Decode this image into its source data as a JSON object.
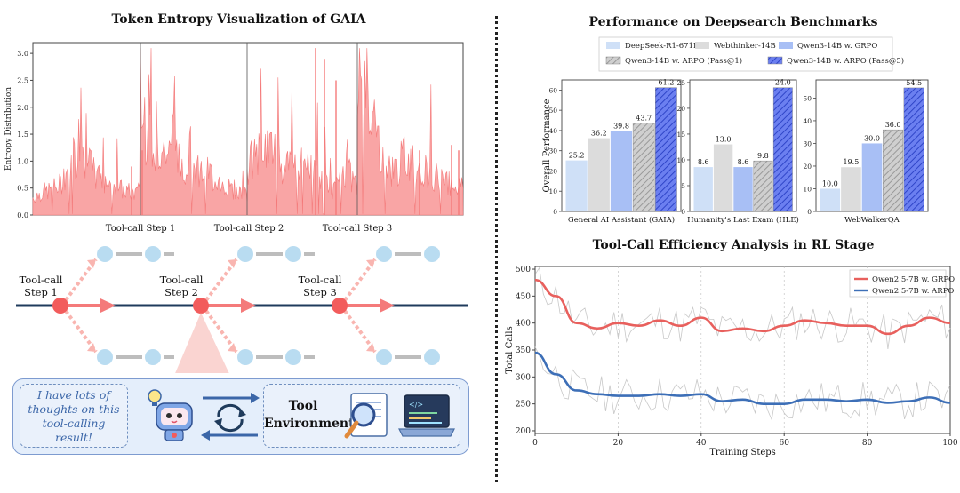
{
  "left": {
    "entropy_title": "Token Entropy Visualization of GAIA",
    "entropy_ylabel": "Entropy Distribution",
    "entropy_yticks": [
      "0.0",
      "0.5",
      "1.0",
      "1.5",
      "2.0",
      "2.5",
      "3.0"
    ],
    "step_labels": [
      "Tool-call Step 1",
      "Tool-call Step 2",
      "Tool-call Step 3"
    ],
    "node_labels": [
      {
        "line1": "Tool-call",
        "line2": "Step 1"
      },
      {
        "line1": "Tool-call",
        "line2": "Step 2"
      },
      {
        "line1": "Tool-call",
        "line2": "Step 3"
      }
    ],
    "thought_text": "I have lots of thoughts on this tool-calling result!",
    "thought_lines": [
      "I have lots of",
      "thoughts on this",
      "tool-calling result!"
    ],
    "env_lines": [
      "Tool",
      "Environment"
    ],
    "colors": {
      "entropy": "#f47a7a",
      "node": "#f25c5c",
      "branch": "#b9dcf1",
      "line": "#1f3b5c"
    }
  },
  "chart_data": [
    {
      "type": "area",
      "title": "Token Entropy Visualization of GAIA",
      "ylabel": "Entropy Distribution",
      "ylim": [
        0,
        3.2
      ],
      "yticks": [
        0.0,
        0.5,
        1.0,
        1.5,
        2.0,
        2.5,
        3.0
      ],
      "xtick_labels": [
        "Tool-call Step 1",
        "Tool-call Step 2",
        "Tool-call Step 3"
      ],
      "segments": [
        {
          "envelope": [
            0.35,
            0.45,
            0.5,
            0.6,
            1.0,
            1.2,
            1.1,
            0.8,
            0.7,
            0.6,
            0.5,
            0.45,
            0.4
          ]
        },
        {
          "envelope": [
            1.8,
            1.5,
            1.3,
            1.1,
            1.0,
            0.9,
            0.8,
            0.6,
            0.5,
            0.4
          ]
        },
        {
          "envelope": [
            1.0,
            1.2,
            1.4,
            1.0,
            0.9,
            1.0,
            0.9,
            0.6,
            0.5,
            0.9,
            0.6
          ]
        },
        {
          "envelope": [
            2.8,
            2.6,
            1.6,
            1.0,
            0.9,
            1.2,
            1.0,
            0.9,
            0.8,
            0.7,
            0.6,
            0.6
          ]
        }
      ],
      "spikes": [
        0.9,
        1.2,
        3.1,
        2.9,
        2.5,
        1.2,
        1.3,
        1.2
      ]
    },
    {
      "type": "bar",
      "title": "Performance on Deepsearch Benchmarks",
      "ylabel": "Overall Performance",
      "legend_position": "top",
      "series": [
        {
          "name": "DeepSeek-R1-671B",
          "color": "#cfe0f7",
          "pattern": "solid"
        },
        {
          "name": "Webthinker-14B",
          "color": "#dcdcdc",
          "pattern": "solid"
        },
        {
          "name": "Qwen3-14B w. GRPO",
          "color": "#a8bff5",
          "pattern": "solid"
        },
        {
          "name": "Qwen3-14B w. ARPO (Pass@1)",
          "color": "#bdbdbd",
          "pattern": "hatch"
        },
        {
          "name": "Qwen3-14B w. ARPO (Pass@5)",
          "color": "#4d63e6",
          "pattern": "hatch"
        }
      ],
      "subplots": [
        {
          "xlabel": "General AI Assistant (GAIA)",
          "values": [
            25.2,
            36.2,
            39.8,
            43.7,
            61.2
          ],
          "ylim": [
            0,
            65
          ],
          "yticks": [
            0,
            10,
            20,
            30,
            40,
            50,
            60
          ]
        },
        {
          "xlabel": "Humanity's Last Exam (HLE)",
          "values": [
            8.6,
            13.0,
            8.6,
            9.8,
            24.0
          ],
          "ylim": [
            0,
            25.5
          ],
          "yticks": [
            0,
            5,
            10,
            15,
            20,
            25
          ]
        },
        {
          "xlabel": "WebWalkerQA",
          "values": [
            10.0,
            19.5,
            30.0,
            36.0,
            54.5
          ],
          "ylim": [
            0,
            58
          ],
          "yticks": [
            0,
            10,
            20,
            30,
            40,
            50
          ]
        }
      ]
    },
    {
      "type": "line",
      "title": "Tool-Call Efficiency Analysis in RL Stage",
      "xlabel": "Training Steps",
      "ylabel": "Total Calls",
      "xlim": [
        0,
        100
      ],
      "ylim": [
        195,
        505
      ],
      "xticks": [
        0,
        20,
        40,
        60,
        80,
        100
      ],
      "yticks": [
        200,
        250,
        300,
        350,
        400,
        450,
        500
      ],
      "legend_position": "top-right",
      "grid": "vertical dotted",
      "x": [
        0,
        5,
        10,
        15,
        20,
        25,
        30,
        35,
        40,
        45,
        50,
        55,
        60,
        65,
        70,
        75,
        80,
        85,
        90,
        95,
        100
      ],
      "series": [
        {
          "name": "Qwen2.5-7B w. GRPO",
          "color": "#e8605d",
          "values": [
            480,
            450,
            400,
            390,
            400,
            395,
            405,
            395,
            410,
            385,
            390,
            385,
            395,
            405,
            400,
            395,
            395,
            380,
            395,
            410,
            400
          ]
        },
        {
          "name": "Qwen2.5-7B w. ARPO",
          "color": "#3d6fb7",
          "values": [
            345,
            305,
            275,
            268,
            265,
            265,
            268,
            265,
            268,
            255,
            258,
            250,
            250,
            258,
            258,
            255,
            258,
            252,
            255,
            262,
            252
          ]
        }
      ]
    }
  ]
}
